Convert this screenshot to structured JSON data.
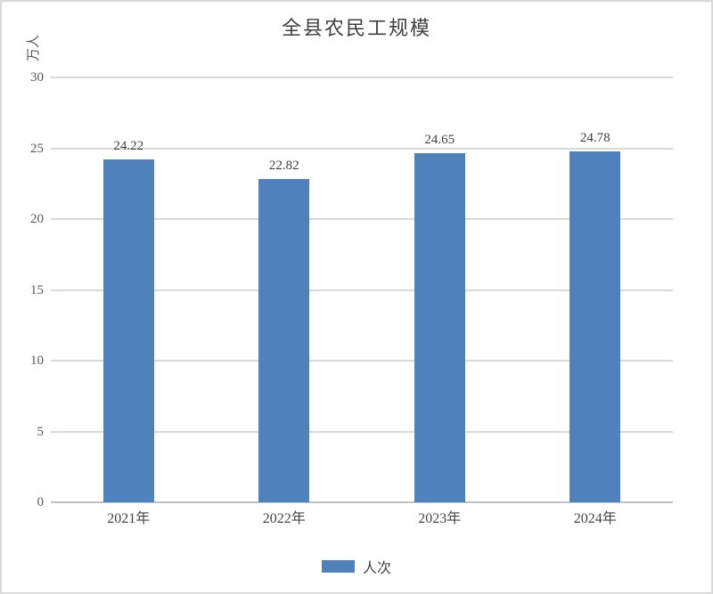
{
  "chart": {
    "title": "全县农民工规模",
    "y_axis_title": "万人",
    "legend_label": "人次",
    "accent_color": "#4f81bd",
    "gridline_color": "#d9d9d9"
  },
  "chart_data": {
    "type": "bar",
    "title": "全县农民工规模",
    "categories": [
      "2021年",
      "2022年",
      "2023年",
      "2024年"
    ],
    "series": [
      {
        "name": "人次",
        "color": "#4f81bd",
        "values": [
          24.22,
          22.82,
          24.65,
          24.78
        ]
      }
    ],
    "data_labels": [
      "24.22",
      "22.82",
      "24.65",
      "24.78"
    ],
    "xlabel": "",
    "ylabel": "万人",
    "ylim": [
      0,
      30
    ],
    "yticks": [
      0,
      5,
      10,
      15,
      20,
      25,
      30
    ],
    "grid": "horizontal",
    "legend_position": "bottom"
  }
}
